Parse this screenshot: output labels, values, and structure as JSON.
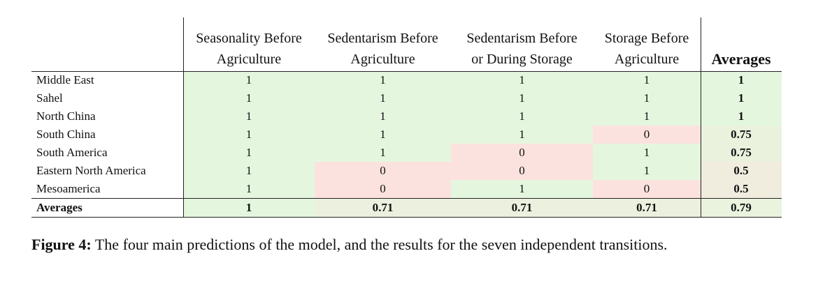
{
  "table": {
    "columns": [
      [
        "Seasonality Before",
        "Agriculture"
      ],
      [
        "Sedentarism Before",
        "Agriculture"
      ],
      [
        "Sedentarism Before",
        "or During Storage"
      ],
      [
        "Storage Before",
        "Agriculture"
      ],
      [
        "Averages"
      ]
    ],
    "rows": [
      {
        "label": "Middle East",
        "values": [
          1,
          1,
          1,
          1,
          1
        ]
      },
      {
        "label": "Sahel",
        "values": [
          1,
          1,
          1,
          1,
          1
        ]
      },
      {
        "label": "North China",
        "values": [
          1,
          1,
          1,
          1,
          1
        ]
      },
      {
        "label": "South China",
        "values": [
          1,
          1,
          1,
          0,
          0.75
        ]
      },
      {
        "label": "South America",
        "values": [
          1,
          1,
          0,
          1,
          0.75
        ]
      },
      {
        "label": "Eastern North America",
        "values": [
          1,
          0,
          0,
          1,
          0.5
        ]
      },
      {
        "label": "Mesoamerica",
        "values": [
          1,
          0,
          1,
          0,
          0.5
        ]
      }
    ],
    "averages": {
      "label": "Averages",
      "values": [
        1,
        0.71,
        0.71,
        0.71,
        0.79
      ]
    }
  },
  "caption": {
    "label": "Figure 4:",
    "text": "The four main predictions of the model, and the results for the seven independent transitions."
  }
}
